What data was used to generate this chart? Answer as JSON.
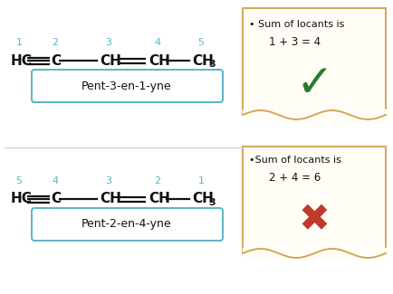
{
  "bg_color": "#ffffff",
  "teal_color": "#5ab4c5",
  "orange_color": "#d4a55a",
  "green_color": "#2d7a2d",
  "red_color": "#c0392b",
  "black_color": "#111111",
  "top_numbers": [
    "1",
    "2",
    "3",
    "4",
    "5"
  ],
  "bot_numbers": [
    "5",
    "4",
    "3",
    "2",
    "1"
  ],
  "top_label": "Pent-3-en-1-yne",
  "bot_label": "Pent-2-en-4-yne",
  "top_sum_line1": "• Sum of locants is",
  "top_sum_line2": "1 + 3 = 4",
  "bot_sum_line1": "•Sum of locants is",
  "bot_sum_line2": "2 + 4 = 6"
}
